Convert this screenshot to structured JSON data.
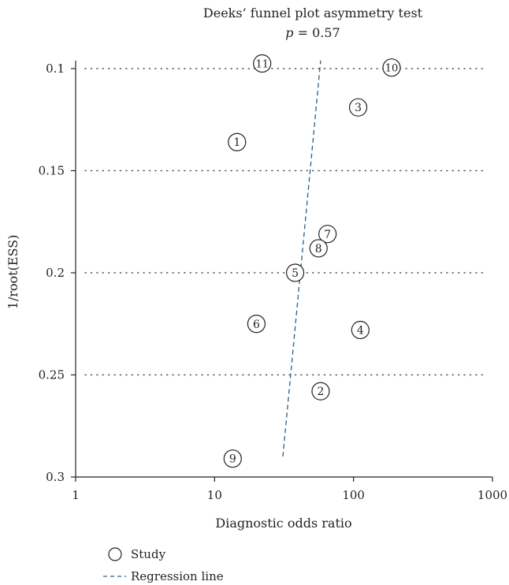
{
  "chart_data": {
    "type": "scatter",
    "title": "Deeks’ funnel plot asymmetry test",
    "subtitle_p_symbol": "p",
    "subtitle_rest": " = 0.57",
    "xlabel": "Diagnostic odds ratio",
    "ylabel": "1/root(ESS)",
    "x_scale": "log",
    "xlim": [
      1,
      1000
    ],
    "ylim": [
      0.3,
      0.1
    ],
    "y_inverted": true,
    "x_ticks": [
      {
        "value": 1,
        "label": "1"
      },
      {
        "value": 10,
        "label": "10"
      },
      {
        "value": 100,
        "label": "100"
      },
      {
        "value": 1000,
        "label": "1000"
      }
    ],
    "y_ticks": [
      {
        "value": 0.1,
        "label": "0.1"
      },
      {
        "value": 0.15,
        "label": "0.15"
      },
      {
        "value": 0.2,
        "label": "0.2"
      },
      {
        "value": 0.25,
        "label": "0.25"
      },
      {
        "value": 0.3,
        "label": "0.3"
      }
    ],
    "gridlines": "horizontal dotted at y ticks",
    "series": [
      {
        "name": "Study",
        "points": [
          {
            "label": "1",
            "x": 14.5,
            "y": 0.136
          },
          {
            "label": "2",
            "x": 58,
            "y": 0.258
          },
          {
            "label": "3",
            "x": 108,
            "y": 0.119
          },
          {
            "label": "4",
            "x": 112,
            "y": 0.228
          },
          {
            "label": "5",
            "x": 38,
            "y": 0.2
          },
          {
            "label": "6",
            "x": 20,
            "y": 0.225
          },
          {
            "label": "7",
            "x": 65,
            "y": 0.181
          },
          {
            "label": "8",
            "x": 56,
            "y": 0.188
          },
          {
            "label": "9",
            "x": 13.5,
            "y": 0.291
          },
          {
            "label": "10",
            "x": 188,
            "y": 0.0995
          },
          {
            "label": "11",
            "x": 22,
            "y": 0.0975
          }
        ]
      }
    ],
    "regression_line": {
      "name": "Regression line",
      "points": [
        {
          "x": 31,
          "y": 0.29
        },
        {
          "x": 58,
          "y": 0.096
        }
      ]
    },
    "legend": {
      "placement": "bottom-left",
      "items": [
        {
          "label": "Study",
          "symbol": "circle"
        },
        {
          "label": "Regression line",
          "symbol": "dashed-line"
        }
      ]
    },
    "colors": {
      "regression": "#2b5f86",
      "axis": "#222222",
      "grid": "#555555"
    }
  }
}
